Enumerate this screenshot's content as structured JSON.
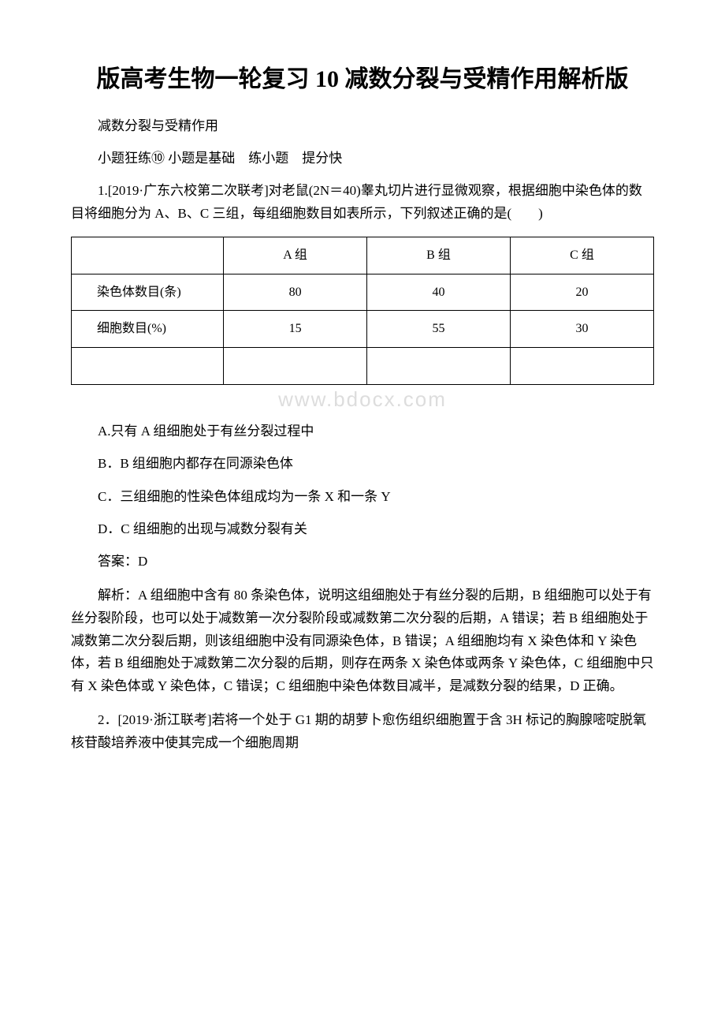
{
  "title": "版高考生物一轮复习 10 减数分裂与受精作用解析版",
  "subtitle1": "减数分裂与受精作用",
  "subtitle2": "小题狂练⑩ 小题是基础　练小题　提分快",
  "q1_intro": "1.[2019·广东六校第二次联考]对老鼠(2N＝40)睾丸切片进行显微观察，根据细胞中染色体的数目将细胞分为 A、B、C 三组，每组细胞数目如表所示，下列叙述正确的是(　　)",
  "table": {
    "columns": [
      "",
      "A 组",
      "B 组",
      "C 组"
    ],
    "rows": [
      {
        "label": "染色体数目(条)",
        "values": [
          "80",
          "40",
          "20"
        ]
      },
      {
        "label": "细胞数目(%)",
        "values": [
          "15",
          "55",
          "30"
        ]
      }
    ]
  },
  "watermark": "www.bdocx.com",
  "q1_options": {
    "a": "A.只有 A 组细胞处于有丝分裂过程中",
    "b": "B．B 组细胞内都存在同源染色体",
    "c": "C．三组细胞的性染色体组成均为一条 X 和一条 Y",
    "d": "D．C 组细胞的出现与减数分裂有关"
  },
  "q1_answer": "答案：D",
  "q1_explain": "解析：A 组细胞中含有 80 条染色体，说明这组细胞处于有丝分裂的后期，B 组细胞可以处于有丝分裂阶段，也可以处于减数第一次分裂阶段或减数第二次分裂的后期，A 错误；若 B 组细胞处于减数第二次分裂后期，则该组细胞中没有同源染色体，B 错误；A 组细胞均有 X 染色体和 Y 染色体，若 B 组细胞处于减数第二次分裂的后期，则存在两条 X 染色体或两条 Y 染色体，C 组细胞中只有 X 染色体或 Y 染色体，C 错误；C 组细胞中染色体数目减半，是减数分裂的结果，D 正确。",
  "q2_intro": "2．[2019·浙江联考]若将一个处于 G1 期的胡萝卜愈伤组织细胞置于含 3H 标记的胸腺嘧啶脱氧核苷酸培养液中使其完成一个细胞周期"
}
